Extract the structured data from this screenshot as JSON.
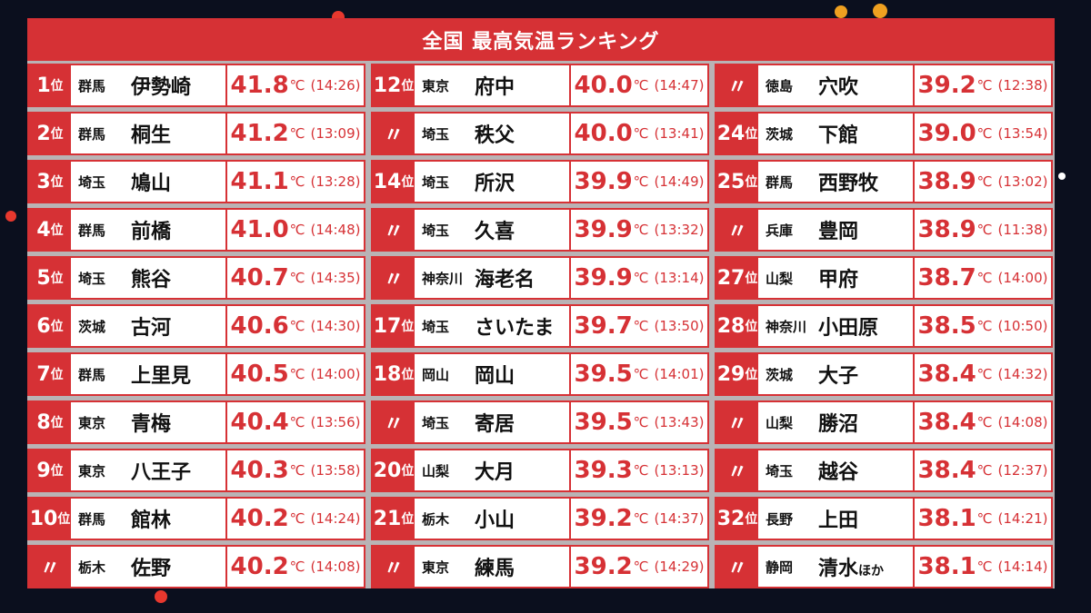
{
  "title": "全国 最高気温ランキング",
  "unit": "℃",
  "colors": {
    "accent": "#d63135",
    "background": "#0b0f1e",
    "panel": "#b9b3b5"
  },
  "columns": [
    [
      {
        "rank": "1",
        "suffix": "位",
        "pref": "群馬",
        "city": "伊勢崎",
        "city_suffix": "",
        "temp": "41.8",
        "time": "(14:26)"
      },
      {
        "rank": "2",
        "suffix": "位",
        "pref": "群馬",
        "city": "桐生",
        "city_suffix": "",
        "temp": "41.2",
        "time": "(13:09)"
      },
      {
        "rank": "3",
        "suffix": "位",
        "pref": "埼玉",
        "city": "鳩山",
        "city_suffix": "",
        "temp": "41.1",
        "time": "(13:28)"
      },
      {
        "rank": "4",
        "suffix": "位",
        "pref": "群馬",
        "city": "前橋",
        "city_suffix": "",
        "temp": "41.0",
        "time": "(14:48)"
      },
      {
        "rank": "5",
        "suffix": "位",
        "pref": "埼玉",
        "city": "熊谷",
        "city_suffix": "",
        "temp": "40.7",
        "time": "(14:35)"
      },
      {
        "rank": "6",
        "suffix": "位",
        "pref": "茨城",
        "city": "古河",
        "city_suffix": "",
        "temp": "40.6",
        "time": "(14:30)"
      },
      {
        "rank": "7",
        "suffix": "位",
        "pref": "群馬",
        "city": "上里見",
        "city_suffix": "",
        "temp": "40.5",
        "time": "(14:00)"
      },
      {
        "rank": "8",
        "suffix": "位",
        "pref": "東京",
        "city": "青梅",
        "city_suffix": "",
        "temp": "40.4",
        "time": "(13:56)"
      },
      {
        "rank": "9",
        "suffix": "位",
        "pref": "東京",
        "city": "八王子",
        "city_suffix": "",
        "temp": "40.3",
        "time": "(13:58)"
      },
      {
        "rank": "10",
        "suffix": "位",
        "pref": "群馬",
        "city": "館林",
        "city_suffix": "",
        "temp": "40.2",
        "time": "(14:24)"
      },
      {
        "rank": "〃",
        "suffix": "",
        "pref": "栃木",
        "city": "佐野",
        "city_suffix": "",
        "temp": "40.2",
        "time": "(14:08)"
      }
    ],
    [
      {
        "rank": "12",
        "suffix": "位",
        "pref": "東京",
        "city": "府中",
        "city_suffix": "",
        "temp": "40.0",
        "time": "(14:47)"
      },
      {
        "rank": "〃",
        "suffix": "",
        "pref": "埼玉",
        "city": "秩父",
        "city_suffix": "",
        "temp": "40.0",
        "time": "(13:41)"
      },
      {
        "rank": "14",
        "suffix": "位",
        "pref": "埼玉",
        "city": "所沢",
        "city_suffix": "",
        "temp": "39.9",
        "time": "(14:49)"
      },
      {
        "rank": "〃",
        "suffix": "",
        "pref": "埼玉",
        "city": "久喜",
        "city_suffix": "",
        "temp": "39.9",
        "time": "(13:32)"
      },
      {
        "rank": "〃",
        "suffix": "",
        "pref": "神奈川",
        "city": "海老名",
        "city_suffix": "",
        "temp": "39.9",
        "time": "(13:14)"
      },
      {
        "rank": "17",
        "suffix": "位",
        "pref": "埼玉",
        "city": "さいたま",
        "city_suffix": "",
        "temp": "39.7",
        "time": "(13:50)"
      },
      {
        "rank": "18",
        "suffix": "位",
        "pref": "岡山",
        "city": "岡山",
        "city_suffix": "",
        "temp": "39.5",
        "time": "(14:01)"
      },
      {
        "rank": "〃",
        "suffix": "",
        "pref": "埼玉",
        "city": "寄居",
        "city_suffix": "",
        "temp": "39.5",
        "time": "(13:43)"
      },
      {
        "rank": "20",
        "suffix": "位",
        "pref": "山梨",
        "city": "大月",
        "city_suffix": "",
        "temp": "39.3",
        "time": "(13:13)"
      },
      {
        "rank": "21",
        "suffix": "位",
        "pref": "栃木",
        "city": "小山",
        "city_suffix": "",
        "temp": "39.2",
        "time": "(14:37)"
      },
      {
        "rank": "〃",
        "suffix": "",
        "pref": "東京",
        "city": "練馬",
        "city_suffix": "",
        "temp": "39.2",
        "time": "(14:29)"
      }
    ],
    [
      {
        "rank": "〃",
        "suffix": "",
        "pref": "徳島",
        "city": "穴吹",
        "city_suffix": "",
        "temp": "39.2",
        "time": "(12:38)"
      },
      {
        "rank": "24",
        "suffix": "位",
        "pref": "茨城",
        "city": "下館",
        "city_suffix": "",
        "temp": "39.0",
        "time": "(13:54)"
      },
      {
        "rank": "25",
        "suffix": "位",
        "pref": "群馬",
        "city": "西野牧",
        "city_suffix": "",
        "temp": "38.9",
        "time": "(13:02)"
      },
      {
        "rank": "〃",
        "suffix": "",
        "pref": "兵庫",
        "city": "豊岡",
        "city_suffix": "",
        "temp": "38.9",
        "time": "(11:38)"
      },
      {
        "rank": "27",
        "suffix": "位",
        "pref": "山梨",
        "city": "甲府",
        "city_suffix": "",
        "temp": "38.7",
        "time": "(14:00)"
      },
      {
        "rank": "28",
        "suffix": "位",
        "pref": "神奈川",
        "city": "小田原",
        "city_suffix": "",
        "temp": "38.5",
        "time": "(10:50)"
      },
      {
        "rank": "29",
        "suffix": "位",
        "pref": "茨城",
        "city": "大子",
        "city_suffix": "",
        "temp": "38.4",
        "time": "(14:32)"
      },
      {
        "rank": "〃",
        "suffix": "",
        "pref": "山梨",
        "city": "勝沼",
        "city_suffix": "",
        "temp": "38.4",
        "time": "(14:08)"
      },
      {
        "rank": "〃",
        "suffix": "",
        "pref": "埼玉",
        "city": "越谷",
        "city_suffix": "",
        "temp": "38.4",
        "time": "(12:37)"
      },
      {
        "rank": "32",
        "suffix": "位",
        "pref": "長野",
        "city": "上田",
        "city_suffix": "",
        "temp": "38.1",
        "time": "(14:21)"
      },
      {
        "rank": "〃",
        "suffix": "",
        "pref": "静岡",
        "city": "清水",
        "city_suffix": "ほか",
        "temp": "38.1",
        "time": "(14:14)"
      }
    ]
  ]
}
